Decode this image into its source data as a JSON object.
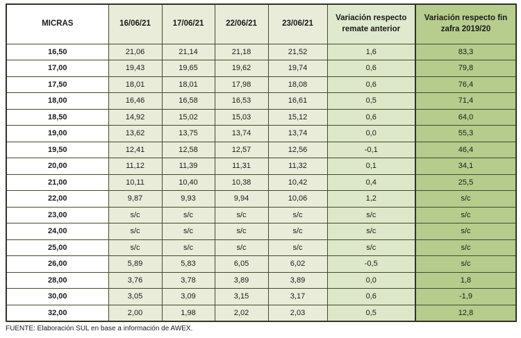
{
  "chart_data": {
    "type": "table",
    "title": "",
    "columns": [
      "MICRAS",
      "16/06/21",
      "17/06/21",
      "22/06/21",
      "23/06/21",
      "Variación respecto remate anterior",
      "Variación respecto fin zafra 2019/20"
    ],
    "rows": [
      [
        "16,50",
        "21,06",
        "21,14",
        "21,18",
        "21,52",
        "1,6",
        "83,3"
      ],
      [
        "17,00",
        "19,43",
        "19,65",
        "19,62",
        "19,74",
        "0,6",
        "79,8"
      ],
      [
        "17,50",
        "18,01",
        "18,01",
        "17,98",
        "18,08",
        "0,6",
        "76,4"
      ],
      [
        "18,00",
        "16,46",
        "16,58",
        "16,53",
        "16,61",
        "0,5",
        "71,4"
      ],
      [
        "18,50",
        "14,92",
        "15,02",
        "15,03",
        "15,12",
        "0,6",
        "64,0"
      ],
      [
        "19,00",
        "13,62",
        "13,75",
        "13,74",
        "13,74",
        "0,0",
        "55,3"
      ],
      [
        "19,50",
        "12,41",
        "12,58",
        "12,57",
        "12,56",
        "-0,1",
        "46,4"
      ],
      [
        "20,00",
        "11,12",
        "11,39",
        "11,31",
        "11,32",
        "0,1",
        "34,1"
      ],
      [
        "21,00",
        "10,11",
        "10,40",
        "10,38",
        "10,42",
        "0,4",
        "25,5"
      ],
      [
        "22,00",
        "9,87",
        "9,93",
        "9,94",
        "10,06",
        "1,2",
        "s/c"
      ],
      [
        "23,00",
        "s/c",
        "s/c",
        "s/c",
        "s/c",
        "s/c",
        "s/c"
      ],
      [
        "24,00",
        "s/c",
        "s/c",
        "s/c",
        "s/c",
        "s/c",
        "s/c"
      ],
      [
        "25,00",
        "s/c",
        "s/c",
        "s/c",
        "s/c",
        "s/c",
        "s/c"
      ],
      [
        "26,00",
        "5,89",
        "5,83",
        "6,05",
        "6,02",
        "-0,5",
        "s/c"
      ],
      [
        "28,00",
        "3,76",
        "3,78",
        "3,89",
        "3,89",
        "0,0",
        "1,8"
      ],
      [
        "30,00",
        "3,05",
        "3,09",
        "3,15",
        "3,17",
        "0,6",
        "-1,9"
      ],
      [
        "32,00",
        "2,00",
        "1,98",
        "2,02",
        "2,03",
        "0,5",
        "12,8"
      ]
    ]
  },
  "footer": {
    "source_note": "FUENTE: Elaboración SUL en base a información de AWEX."
  },
  "colors": {
    "micras_col_bg": "#ffffff",
    "date_col_bg": "#e9ecd9",
    "variation_remate_col_bg": "#dde8c8",
    "variation_zafra_col_bg": "#b5cc8c",
    "grid_border": "#414a2b",
    "outer_border": "#2e3322"
  }
}
